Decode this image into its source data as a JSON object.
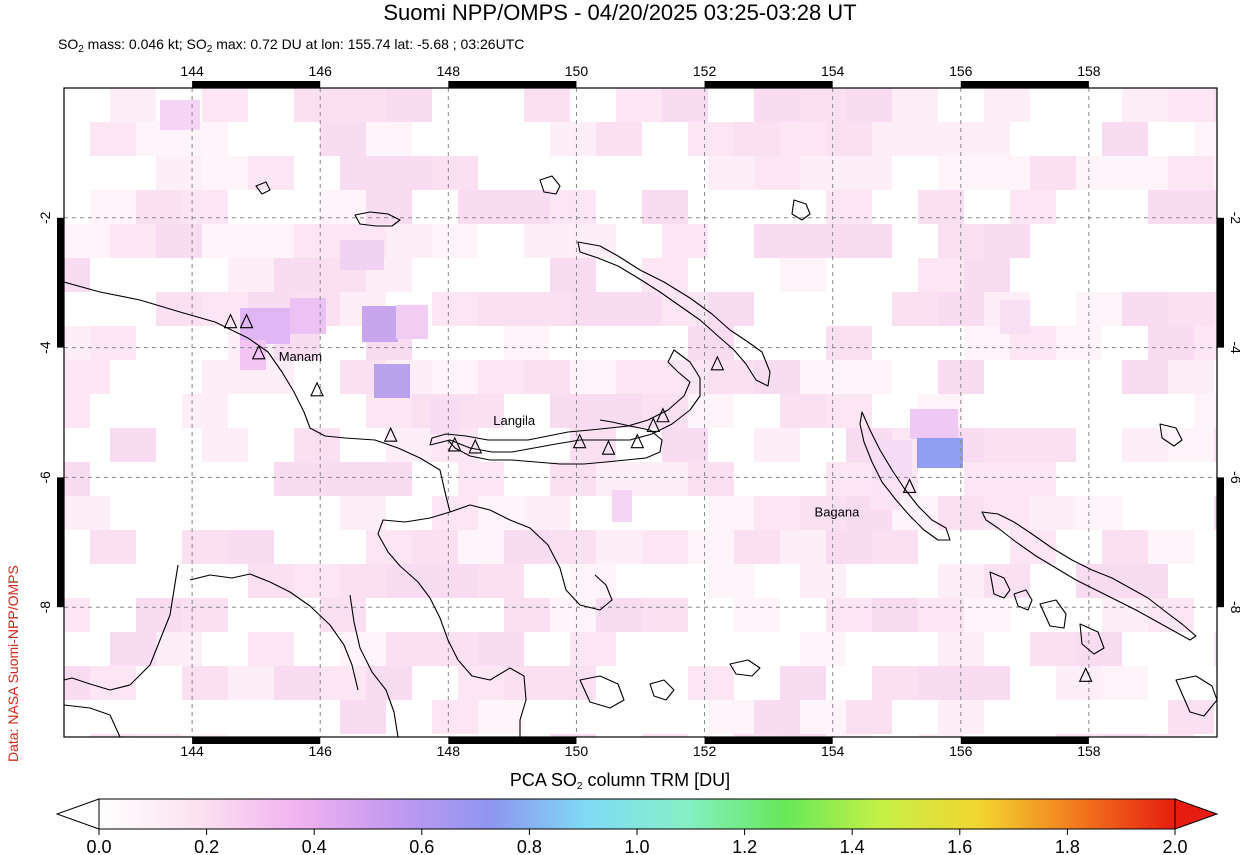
{
  "header": {
    "title": "Suomi NPP/OMPS - 04/20/2025 03:25-03:28 UT",
    "subtitle_parts": {
      "mass_prefix": "SO",
      "mass_sub": "2",
      "mass_text": " mass: 0.046 kt; ",
      "max_prefix": "SO",
      "max_sub": "2",
      "max_text": " max: 0.72 DU at lon: 155.74 lat: -5.68 ; 03:26UTC"
    }
  },
  "credit": "Data: NASA Suomi-NPP/OMPS",
  "map": {
    "lon_range": [
      142.0,
      160.0
    ],
    "lat_range": [
      -10.0,
      0.0
    ],
    "lon_ticks": [
      "144",
      "146",
      "148",
      "150",
      "152",
      "154",
      "156",
      "158"
    ],
    "lat_ticks": [
      "-2",
      "-4",
      "-6",
      "-8"
    ],
    "volcanoes": [
      {
        "name": "Manam",
        "lon": 145.04,
        "lat": -4.08
      },
      {
        "name": "Langila",
        "lon": 148.42,
        "lat": -5.53
      },
      {
        "name": "Bagana",
        "lon": 155.2,
        "lat": -6.14
      }
    ],
    "extra_volcano_markers": [
      {
        "lon": 144.6,
        "lat": -3.6
      },
      {
        "lon": 144.85,
        "lat": -3.6
      },
      {
        "lon": 145.95,
        "lat": -4.65
      },
      {
        "lon": 147.1,
        "lat": -5.35
      },
      {
        "lon": 148.1,
        "lat": -5.5
      },
      {
        "lon": 150.05,
        "lat": -5.45
      },
      {
        "lon": 150.5,
        "lat": -5.55
      },
      {
        "lon": 150.95,
        "lat": -5.45
      },
      {
        "lon": 151.2,
        "lat": -5.2
      },
      {
        "lon": 151.35,
        "lat": -5.05
      },
      {
        "lon": 152.2,
        "lat": -4.25
      },
      {
        "lon": 157.95,
        "lat": -9.05
      }
    ]
  },
  "colorbar": {
    "label_prefix": "PCA SO",
    "label_sub": "2",
    "label_suffix": " column TRM [DU]",
    "ticks": [
      "0.0",
      "0.2",
      "0.4",
      "0.6",
      "0.8",
      "1.0",
      "1.2",
      "1.4",
      "1.6",
      "1.8",
      "2.0"
    ],
    "range": [
      0.0,
      2.0
    ],
    "stops": [
      "#ffffff",
      "#fbe3f0",
      "#f2b4f0",
      "#c49af0",
      "#8f95f0",
      "#7fdbf5",
      "#86f0c6",
      "#66e85a",
      "#c6f046",
      "#f2d630",
      "#f27a1e",
      "#e61c10"
    ]
  }
}
